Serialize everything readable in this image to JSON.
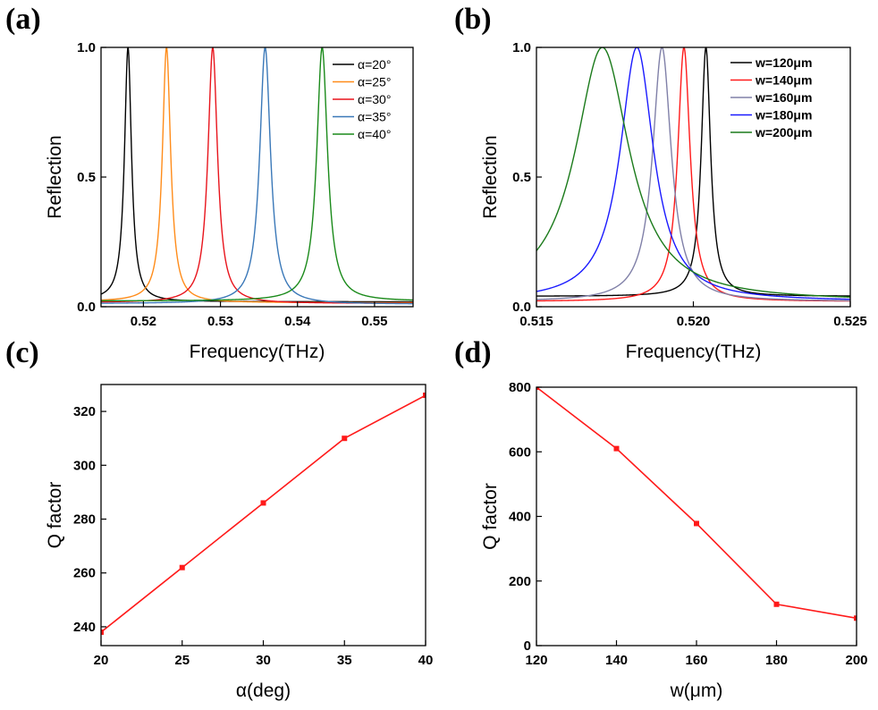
{
  "panels": [
    "(a)",
    "(b)",
    "(c)",
    "(d)"
  ],
  "chart_data": [
    {
      "id": "a",
      "type": "line",
      "xlabel": "Frequency(THz)",
      "ylabel": "Reflection",
      "xlim": [
        0.5145,
        0.555
      ],
      "ylim": [
        0,
        1.0
      ],
      "xticks": [
        0.52,
        0.53,
        0.54,
        0.55
      ],
      "xtick_labels": [
        "0.52",
        "0.53",
        "0.54",
        "0.55"
      ],
      "yticks": [
        0,
        0.5,
        1.0
      ],
      "ytick_labels": [
        "0.0",
        "0.5",
        "1.0"
      ],
      "legend_position": "top-right",
      "series": [
        {
          "name": "α=20°",
          "color": "#000000",
          "peak": 0.518,
          "width": 0.00055,
          "baseline": 0.015,
          "fano": 0.01
        },
        {
          "name": "α=25°",
          "color": "#ff8c1a",
          "peak": 0.523,
          "width": 0.00065,
          "baseline": 0.012,
          "fano": 0.008
        },
        {
          "name": "α=30°",
          "color": "#e8141c",
          "peak": 0.529,
          "width": 0.00075,
          "baseline": 0.01,
          "fano": 0.006
        },
        {
          "name": "α=35°",
          "color": "#3a78b8",
          "peak": 0.5358,
          "width": 0.00085,
          "baseline": 0.008,
          "fano": 0.004
        },
        {
          "name": "α=40°",
          "color": "#1a8a1a",
          "peak": 0.5432,
          "width": 0.00085,
          "baseline": 0.02,
          "fano": 0.002
        }
      ]
    },
    {
      "id": "b",
      "type": "line",
      "xlabel": "Frequency(THz)",
      "ylabel": "Reflection",
      "xlim": [
        0.515,
        0.525
      ],
      "ylim": [
        0,
        1.0
      ],
      "xticks": [
        0.515,
        0.52,
        0.525
      ],
      "xtick_labels": [
        "0.515",
        "0.520",
        "0.525"
      ],
      "yticks": [
        0,
        0.5,
        1.0
      ],
      "ytick_labels": [
        "0.0",
        "0.5",
        "1.0"
      ],
      "legend_position": "top-right",
      "series": [
        {
          "name": "w=120μm",
          "color": "#000000",
          "peak": 0.5204,
          "width": 0.00018,
          "baseline": 0.04
        },
        {
          "name": "w=140μm",
          "color": "#ff1a1a",
          "peak": 0.5197,
          "width": 0.00024,
          "baseline": 0.02
        },
        {
          "name": "w=160μm",
          "color": "#8080a8",
          "peak": 0.519,
          "width": 0.00036,
          "baseline": 0.02
        },
        {
          "name": "w=180μm",
          "color": "#1a1aff",
          "peak": 0.5182,
          "width": 0.00065,
          "baseline": 0.02
        },
        {
          "name": "w=200μm",
          "color": "#1a7a1a",
          "peak": 0.5171,
          "width": 0.00105,
          "baseline": 0.02
        }
      ]
    },
    {
      "id": "c",
      "type": "line",
      "xlabel": "α(deg)",
      "ylabel": "Q factor",
      "xlim": [
        20,
        40
      ],
      "ylim": [
        233,
        330
      ],
      "xticks": [
        20,
        25,
        30,
        35,
        40
      ],
      "xtick_labels": [
        "20",
        "25",
        "30",
        "35",
        "40"
      ],
      "yticks": [
        240,
        260,
        280,
        300,
        320
      ],
      "ytick_labels": [
        "240",
        "260",
        "280",
        "300",
        "320"
      ],
      "series": [
        {
          "color": "#ff1a1a",
          "x": [
            20,
            25,
            30,
            35,
            40
          ],
          "y": [
            238,
            262,
            286,
            310,
            326
          ]
        }
      ]
    },
    {
      "id": "d",
      "type": "line",
      "xlabel": "w(μm)",
      "ylabel": "Q factor",
      "xlim": [
        120,
        200
      ],
      "ylim": [
        0,
        800
      ],
      "xticks": [
        120,
        140,
        160,
        180,
        200
      ],
      "xtick_labels": [
        "120",
        "140",
        "160",
        "180",
        "200"
      ],
      "yticks": [
        0,
        200,
        400,
        600,
        800
      ],
      "ytick_labels": [
        "0",
        "200",
        "400",
        "600",
        "800"
      ],
      "series": [
        {
          "color": "#ff1a1a",
          "x": [
            120,
            140,
            160,
            180,
            200
          ],
          "y": [
            800,
            610,
            378,
            128,
            85
          ]
        }
      ]
    }
  ]
}
